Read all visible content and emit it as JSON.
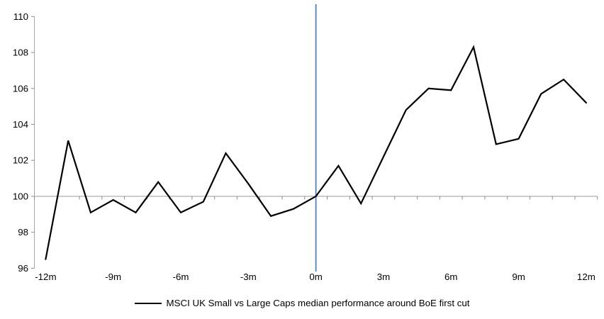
{
  "chart_data": {
    "type": "line",
    "x_unit": "months relative to BoE first cut",
    "x": [
      -12,
      -11,
      -10,
      -9,
      -8,
      -7,
      -6,
      -5,
      -4,
      -3,
      -2,
      -1,
      0,
      1,
      2,
      3,
      4,
      5,
      6,
      7,
      8,
      9,
      10,
      11,
      12
    ],
    "series": [
      {
        "name": "MSCI UK Small vs Large Caps median performance around BoE first cut",
        "values": [
          96.5,
          103.1,
          99.1,
          99.8,
          99.1,
          100.8,
          99.1,
          99.7,
          102.4,
          100.7,
          98.9,
          99.3,
          100.0,
          101.7,
          99.6,
          102.2,
          104.8,
          106.0,
          105.9,
          108.3,
          102.9,
          103.2,
          105.7,
          106.5,
          105.2
        ]
      }
    ],
    "x_tick_values": [
      -12,
      -9,
      -6,
      -3,
      0,
      3,
      6,
      9,
      12
    ],
    "x_tick_labels": [
      "-12m",
      "-9m",
      "-6m",
      "-3m",
      "0m",
      "3m",
      "6m",
      "9m",
      "12m"
    ],
    "y_ticks": [
      96,
      98,
      100,
      102,
      104,
      106,
      108,
      110
    ],
    "ylim": [
      96,
      110
    ],
    "baseline_value": 100,
    "event_line": {
      "x": 0,
      "color": "#4f81bd"
    },
    "grid": "off",
    "legend": {
      "position": "bottom",
      "label": "MSCI UK Small vs Large Caps median performance around BoE first cut"
    },
    "colors": {
      "series_line": "#000000",
      "axis_line": "#a6a6a6",
      "tick_mark": "#8c8c8c",
      "text": "#000000"
    }
  }
}
